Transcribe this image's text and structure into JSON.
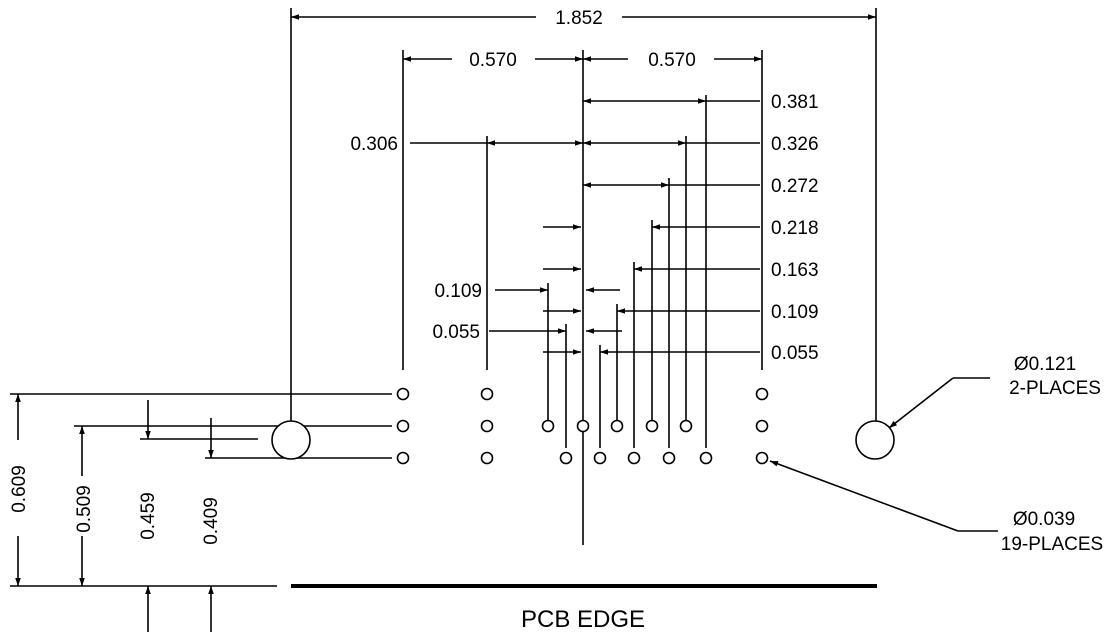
{
  "dimensions": {
    "overall_width": "1.852",
    "left_half": "0.570",
    "right_half": "0.570",
    "right_offsets": [
      "0.381",
      "0.326",
      "0.272",
      "0.218",
      "0.163",
      "0.109",
      "0.055"
    ],
    "left_offsets": [
      "0.306",
      "0.109",
      "0.055"
    ],
    "vertical": [
      "0.609",
      "0.509",
      "0.459",
      "0.409"
    ]
  },
  "callouts": {
    "large_hole": {
      "diameter": "Ø0.121",
      "qty": "2-PLACES"
    },
    "small_hole": {
      "diameter": "Ø0.039",
      "qty": "19-PLACES"
    }
  },
  "edge_label": "PCB EDGE"
}
